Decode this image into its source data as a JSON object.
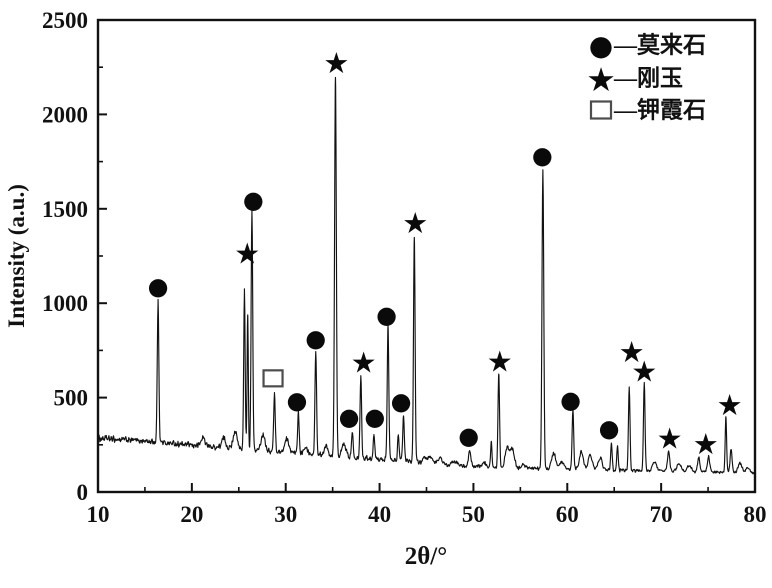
{
  "figure": {
    "background": "#ffffff",
    "trace_color": "#121212",
    "marker_color": "#0a0a0a",
    "square_stroke_color": "#4d4d4d",
    "frame_color": "#111111"
  },
  "chart_data": {
    "type": "line",
    "title": "",
    "xlabel": "2θ/°",
    "ylabel": "Intensity (a.u.)",
    "xlim": [
      10,
      80
    ],
    "ylim": [
      0,
      2500
    ],
    "x_major_ticks": [
      10,
      20,
      30,
      40,
      50,
      60,
      70,
      80
    ],
    "x_minor_step": 5,
    "y_major_ticks": [
      0,
      500,
      1000,
      1500,
      2000,
      2500
    ],
    "y_minor_step": 250,
    "grid": false,
    "legend": {
      "position": "top-right",
      "items": [
        {
          "symbol": "filled-circle",
          "phase_key": "mullite",
          "label": "—莫来石"
        },
        {
          "symbol": "filled-star",
          "phase_key": "corundum",
          "label": "—刚玉"
        },
        {
          "symbol": "open-square",
          "phase_key": "kaliophilite",
          "label": "—钾霞石"
        }
      ]
    },
    "baseline_points": [
      [
        10,
        284
      ],
      [
        13,
        276
      ],
      [
        16,
        266
      ],
      [
        19,
        252
      ],
      [
        22,
        240
      ],
      [
        25,
        228
      ],
      [
        28,
        216
      ],
      [
        31,
        206
      ],
      [
        34,
        196
      ],
      [
        37,
        186
      ],
      [
        40,
        174
      ],
      [
        43,
        162
      ],
      [
        46,
        150
      ],
      [
        49,
        140
      ],
      [
        52,
        132
      ],
      [
        55,
        126
      ],
      [
        58,
        123
      ],
      [
        61,
        119
      ],
      [
        64,
        116
      ],
      [
        67,
        113
      ],
      [
        70,
        110
      ],
      [
        73,
        107
      ],
      [
        76,
        104
      ],
      [
        80,
        100
      ]
    ],
    "noise_amplitude": {
      "at_x_min": 20,
      "at_x_max": 8
    },
    "peaks": [
      {
        "two_theta": 16.4,
        "intensity": 1005,
        "width": 0.2,
        "marker": "circle",
        "marker_pos": [
          16.4,
          1090
        ]
      },
      {
        "two_theta": 25.6,
        "intensity": 1065,
        "width": 0.18,
        "marker": "star",
        "marker_pos": [
          25.9,
          1272
        ]
      },
      {
        "two_theta": 25.95,
        "intensity": 950,
        "width": 0.15,
        "marker": null,
        "marker_pos": null
      },
      {
        "two_theta": 26.4,
        "intensity": 1485,
        "width": 0.2,
        "marker": "circle",
        "marker_pos": [
          26.55,
          1550
        ]
      },
      {
        "two_theta": 28.8,
        "intensity": 520,
        "width": 0.2,
        "marker": "square",
        "marker_pos": [
          28.65,
          602
        ]
      },
      {
        "two_theta": 31.35,
        "intensity": 420,
        "width": 0.2,
        "marker": "circle",
        "marker_pos": [
          31.2,
          488
        ]
      },
      {
        "two_theta": 33.2,
        "intensity": 750,
        "width": 0.2,
        "marker": "circle",
        "marker_pos": [
          33.2,
          815
        ]
      },
      {
        "two_theta": 35.3,
        "intensity": 2200,
        "width": 0.22,
        "marker": "star",
        "marker_pos": [
          35.4,
          2280
        ]
      },
      {
        "two_theta": 37.1,
        "intensity": 315,
        "width": 0.2,
        "marker": "circle",
        "marker_pos": [
          36.75,
          400
        ]
      },
      {
        "two_theta": 38.0,
        "intensity": 612,
        "width": 0.2,
        "marker": "star",
        "marker_pos": [
          38.3,
          695
        ]
      },
      {
        "two_theta": 39.4,
        "intensity": 300,
        "width": 0.2,
        "marker": "circle",
        "marker_pos": [
          39.5,
          400
        ]
      },
      {
        "two_theta": 40.9,
        "intensity": 875,
        "width": 0.2,
        "marker": "circle",
        "marker_pos": [
          40.75,
          940
        ]
      },
      {
        "two_theta": 42.0,
        "intensity": 310,
        "width": 0.18,
        "marker": null,
        "marker_pos": null
      },
      {
        "two_theta": 42.55,
        "intensity": 400,
        "width": 0.2,
        "marker": "circle",
        "marker_pos": [
          42.3,
          483
        ]
      },
      {
        "two_theta": 43.7,
        "intensity": 1352,
        "width": 0.2,
        "marker": "star",
        "marker_pos": [
          43.8,
          1432
        ]
      },
      {
        "two_theta": 49.6,
        "intensity": 212,
        "width": 0.3,
        "marker": "circle",
        "marker_pos": [
          49.5,
          300
        ]
      },
      {
        "two_theta": 51.9,
        "intensity": 272,
        "width": 0.16,
        "marker": null,
        "marker_pos": null
      },
      {
        "two_theta": 52.7,
        "intensity": 632,
        "width": 0.2,
        "marker": "star",
        "marker_pos": [
          52.8,
          700
        ]
      },
      {
        "two_theta": 57.4,
        "intensity": 1706,
        "width": 0.22,
        "marker": "circle",
        "marker_pos": [
          57.35,
          1786
        ]
      },
      {
        "two_theta": 60.6,
        "intensity": 436,
        "width": 0.2,
        "marker": "circle",
        "marker_pos": [
          60.35,
          490
        ]
      },
      {
        "two_theta": 64.7,
        "intensity": 258,
        "width": 0.2,
        "marker": "circle",
        "marker_pos": [
          64.45,
          340
        ]
      },
      {
        "two_theta": 65.35,
        "intensity": 246,
        "width": 0.18,
        "marker": null,
        "marker_pos": null
      },
      {
        "two_theta": 66.6,
        "intensity": 556,
        "width": 0.2,
        "marker": "star",
        "marker_pos": [
          66.85,
          750
        ]
      },
      {
        "two_theta": 68.2,
        "intensity": 578,
        "width": 0.2,
        "marker": "star",
        "marker_pos": [
          68.2,
          645
        ]
      },
      {
        "two_theta": 70.8,
        "intensity": 215,
        "width": 0.28,
        "marker": "star",
        "marker_pos": [
          70.9,
          290
        ]
      },
      {
        "two_theta": 74.0,
        "intensity": 182,
        "width": 0.3,
        "marker": null,
        "marker_pos": null
      },
      {
        "two_theta": 75.05,
        "intensity": 190,
        "width": 0.3,
        "marker": "star",
        "marker_pos": [
          74.75,
          263
        ]
      },
      {
        "two_theta": 76.9,
        "intensity": 398,
        "width": 0.18,
        "marker": "star",
        "marker_pos": [
          77.3,
          468
        ]
      },
      {
        "two_theta": 77.45,
        "intensity": 225,
        "width": 0.25,
        "marker": null,
        "marker_pos": null
      }
    ],
    "minor_bumps": [
      [
        21.2,
        288
      ],
      [
        23.4,
        284
      ],
      [
        24.6,
        322
      ],
      [
        27.6,
        308
      ],
      [
        30.1,
        283
      ],
      [
        32.1,
        243
      ],
      [
        34.3,
        243
      ],
      [
        36.2,
        252
      ],
      [
        44.8,
        176
      ],
      [
        45.4,
        188
      ],
      [
        46.4,
        182
      ],
      [
        48.0,
        162
      ],
      [
        51.2,
        152
      ],
      [
        53.6,
        236
      ],
      [
        54.15,
        225
      ],
      [
        55.3,
        146
      ],
      [
        58.55,
        206
      ],
      [
        59.4,
        156
      ],
      [
        61.5,
        212
      ],
      [
        62.45,
        198
      ],
      [
        63.5,
        182
      ],
      [
        69.3,
        162
      ],
      [
        71.9,
        150
      ],
      [
        73.0,
        142
      ],
      [
        78.4,
        152
      ],
      [
        79.2,
        126
      ]
    ]
  }
}
